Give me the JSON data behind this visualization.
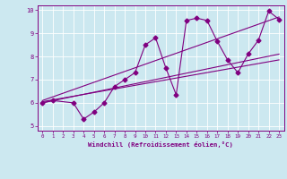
{
  "title": "",
  "xlabel": "Windchill (Refroidissement éolien,°C)",
  "bg_color": "#cce8f0",
  "line_color": "#800080",
  "xlim": [
    -0.5,
    23.5
  ],
  "ylim": [
    4.8,
    10.2
  ],
  "xticks": [
    0,
    1,
    2,
    3,
    4,
    5,
    6,
    7,
    8,
    9,
    10,
    11,
    12,
    13,
    14,
    15,
    16,
    17,
    18,
    19,
    20,
    21,
    22,
    23
  ],
  "yticks": [
    5,
    6,
    7,
    8,
    9,
    10
  ],
  "scatter_x": [
    0,
    1,
    3,
    4,
    5,
    6,
    7,
    8,
    9,
    10,
    11,
    12,
    13,
    14,
    15,
    16,
    17,
    18,
    19,
    20,
    21,
    22,
    23
  ],
  "scatter_y": [
    6.0,
    6.1,
    6.0,
    5.3,
    5.6,
    6.0,
    6.7,
    7.0,
    7.3,
    8.5,
    8.8,
    7.5,
    6.35,
    9.55,
    9.65,
    9.55,
    8.65,
    7.85,
    7.3,
    8.1,
    8.7,
    9.95,
    9.6
  ],
  "reg_line1_x": [
    0,
    23
  ],
  "reg_line1_y": [
    6.0,
    8.1
  ],
  "reg_line2_x": [
    0,
    23
  ],
  "reg_line2_y": [
    6.05,
    7.85
  ],
  "reg_line3_x": [
    0,
    23
  ],
  "reg_line3_y": [
    6.1,
    9.7
  ]
}
